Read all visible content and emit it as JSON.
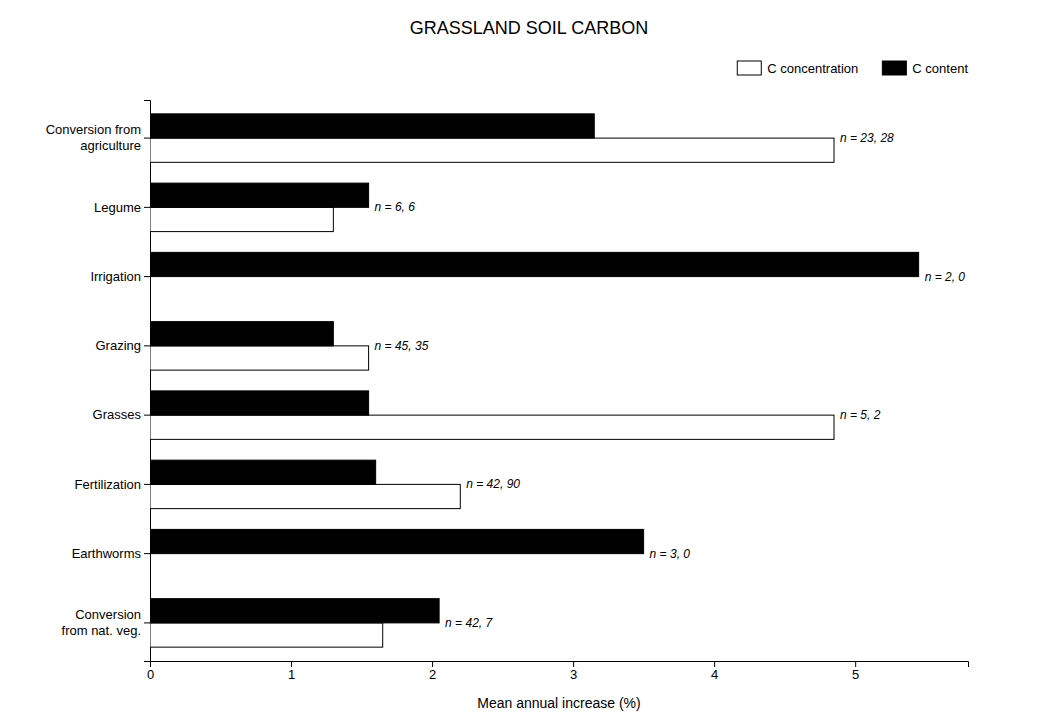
{
  "chart_data": {
    "type": "bar",
    "orientation": "horizontal",
    "title": "GRASSLAND SOIL CARBON",
    "x_label": "Mean annual increase (%)",
    "categories": [
      "Conversion from\nagriculture",
      "Legume",
      "Irrigation",
      "Grazing",
      "Grasses",
      "Fertilization",
      "Earthworms",
      "Conversion\nfrom nat. veg."
    ],
    "series": [
      {
        "name": "C concentration",
        "color": "#ffffff",
        "values": [
          4.85,
          1.3,
          0,
          1.55,
          4.85,
          2.2,
          0,
          1.65
        ]
      },
      {
        "name": "C content",
        "color": "#000000",
        "values": [
          3.15,
          1.55,
          5.45,
          1.3,
          1.55,
          1.6,
          3.5,
          2.05
        ]
      }
    ],
    "annotations": [
      "n = 23, 28",
      "n = 6, 6",
      "n = 2, 0",
      "n = 45, 35",
      "n = 5, 2",
      "n = 42, 90",
      "n = 3, 0",
      "n = 42, 7"
    ],
    "xlim": [
      0,
      5.8
    ],
    "xticks": [
      0,
      1,
      2,
      3,
      4,
      5
    ],
    "legend": "upper right"
  }
}
